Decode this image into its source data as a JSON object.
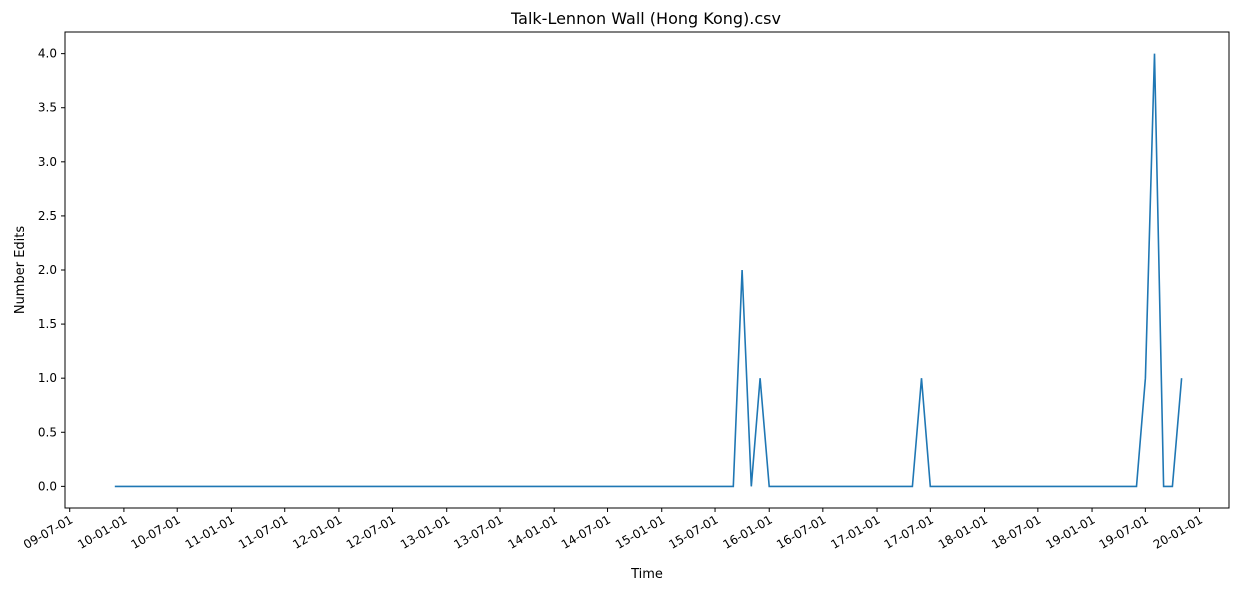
{
  "chart_data": {
    "type": "line",
    "title": "Talk-Lennon Wall (Hong Kong).csv",
    "xlabel": "Time",
    "ylabel": "Number Edits",
    "xlim": [
      "2009-06-15",
      "2020-04-10"
    ],
    "ylim": [
      -0.2,
      4.2
    ],
    "grid": false,
    "line_color": "#1f77b4",
    "x_ticks": [
      {
        "date": "2009-07-01",
        "label": "09-07-01"
      },
      {
        "date": "2010-01-01",
        "label": "10-01-01"
      },
      {
        "date": "2010-07-01",
        "label": "10-07-01"
      },
      {
        "date": "2011-01-01",
        "label": "11-01-01"
      },
      {
        "date": "2011-07-01",
        "label": "11-07-01"
      },
      {
        "date": "2012-01-01",
        "label": "12-01-01"
      },
      {
        "date": "2012-07-01",
        "label": "12-07-01"
      },
      {
        "date": "2013-01-01",
        "label": "13-01-01"
      },
      {
        "date": "2013-07-01",
        "label": "13-07-01"
      },
      {
        "date": "2014-01-01",
        "label": "14-01-01"
      },
      {
        "date": "2014-07-01",
        "label": "14-07-01"
      },
      {
        "date": "2015-01-01",
        "label": "15-01-01"
      },
      {
        "date": "2015-07-01",
        "label": "15-07-01"
      },
      {
        "date": "2016-01-01",
        "label": "16-01-01"
      },
      {
        "date": "2016-07-01",
        "label": "16-07-01"
      },
      {
        "date": "2017-01-01",
        "label": "17-01-01"
      },
      {
        "date": "2017-07-01",
        "label": "17-07-01"
      },
      {
        "date": "2018-01-01",
        "label": "18-01-01"
      },
      {
        "date": "2018-07-01",
        "label": "18-07-01"
      },
      {
        "date": "2019-01-01",
        "label": "19-01-01"
      },
      {
        "date": "2019-07-01",
        "label": "19-07-01"
      },
      {
        "date": "2020-01-01",
        "label": "20-01-01"
      }
    ],
    "y_ticks": [
      {
        "value": 0.0,
        "label": "0.0"
      },
      {
        "value": 0.5,
        "label": "0.5"
      },
      {
        "value": 1.0,
        "label": "1.0"
      },
      {
        "value": 1.5,
        "label": "1.5"
      },
      {
        "value": 2.0,
        "label": "2.0"
      },
      {
        "value": 2.5,
        "label": "2.5"
      },
      {
        "value": 3.0,
        "label": "3.0"
      },
      {
        "value": 3.5,
        "label": "3.5"
      },
      {
        "value": 4.0,
        "label": "4.0"
      }
    ],
    "series": [
      {
        "points": [
          {
            "x": "2009-12-01",
            "y": 0
          },
          {
            "x": "2015-09-01",
            "y": 0
          },
          {
            "x": "2015-10-01",
            "y": 2
          },
          {
            "x": "2015-11-01",
            "y": 0
          },
          {
            "x": "2015-12-01",
            "y": 1
          },
          {
            "x": "2016-01-01",
            "y": 0
          },
          {
            "x": "2017-05-01",
            "y": 0
          },
          {
            "x": "2017-06-01",
            "y": 1
          },
          {
            "x": "2017-07-01",
            "y": 0
          },
          {
            "x": "2019-06-01",
            "y": 0
          },
          {
            "x": "2019-07-01",
            "y": 1
          },
          {
            "x": "2019-08-01",
            "y": 4
          },
          {
            "x": "2019-09-01",
            "y": 0
          },
          {
            "x": "2019-10-01",
            "y": 0
          },
          {
            "x": "2019-11-01",
            "y": 1
          }
        ]
      }
    ]
  }
}
